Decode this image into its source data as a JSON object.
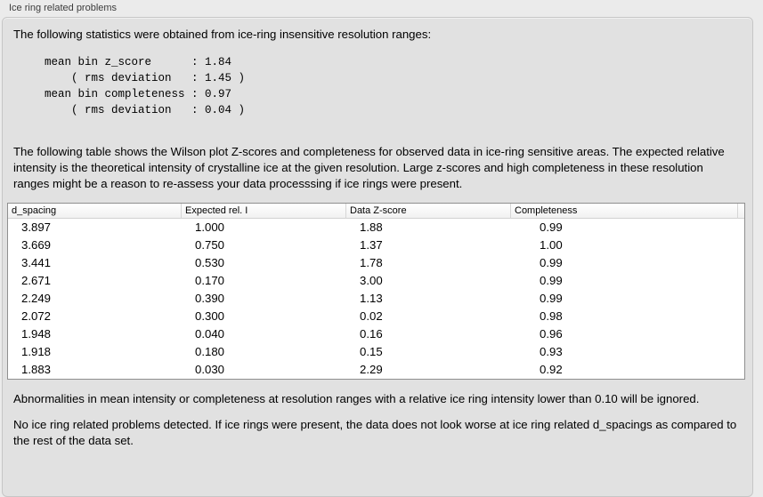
{
  "panel": {
    "title": "Ice ring related problems"
  },
  "content": {
    "intro": "The following statistics were obtained from ice-ring insensitive resolution ranges:",
    "stats_block": "mean bin z_score      : 1.84\n    ( rms deviation   : 1.45 )\nmean bin completeness : 0.97\n    ( rms deviation   : 0.04 )",
    "table_description": "The following table shows the Wilson plot Z-scores and completeness for observed data in ice-ring sensitive areas. The expected relative intensity is the theoretical intensity of crystalline ice at the given resolution. Large z-scores and high completeness in these resolution ranges might be a reason to re-assess your data processsing if ice rings were present.",
    "ignore_note": "Abnormalities in mean intensity or completeness at resolution ranges with a relative ice ring intensity lower than 0.10 will be ignored.",
    "conclusion": "No ice ring related problems detected. If ice rings were present, the data does not look worse at ice ring related d_spacings as compared to the rest of the data set."
  },
  "table": {
    "columns": [
      "d_spacing",
      "Expected rel. I",
      "Data Z-score",
      "Completeness"
    ],
    "rows": [
      [
        "3.897",
        "1.000",
        "1.88",
        "0.99"
      ],
      [
        "3.669",
        "0.750",
        "1.37",
        "1.00"
      ],
      [
        "3.441",
        "0.530",
        "1.78",
        "0.99"
      ],
      [
        "2.671",
        "0.170",
        "3.00",
        "0.99"
      ],
      [
        "2.249",
        "0.390",
        "1.13",
        "0.99"
      ],
      [
        "2.072",
        "0.300",
        "0.02",
        "0.98"
      ],
      [
        "1.948",
        "0.040",
        "0.16",
        "0.96"
      ],
      [
        "1.918",
        "0.180",
        "0.15",
        "0.93"
      ],
      [
        "1.883",
        "0.030",
        "2.29",
        "0.92"
      ]
    ]
  },
  "colors": {
    "window_bg": "#ebebeb",
    "panel_bg": "#e1e1e1",
    "panel_border": "#c6c6c6",
    "table_bg": "#ffffff",
    "table_border": "#8f8f8f",
    "header_bg": "#f6f6f6",
    "text": "#000000"
  }
}
